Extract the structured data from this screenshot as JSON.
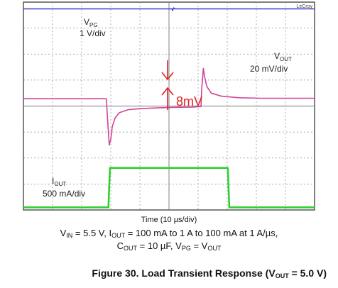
{
  "chart_data": {
    "type": "line",
    "instrument_label": "LeCroy",
    "xlabel": "Time (10 µs/div)",
    "x_divisions": 10,
    "y_divisions": 8,
    "grid": true,
    "series": [
      {
        "name": "VPG",
        "name_main": "V",
        "name_sub": "PG",
        "scale": "1 V/div",
        "color": "#3a3ad0",
        "x_div": [
          0,
          5.1,
          5.12,
          5.16,
          5.2,
          10
        ],
        "y_div": [
          7.74,
          7.74,
          7.68,
          7.78,
          7.74,
          7.74
        ]
      },
      {
        "name": "VOUT",
        "name_main": "V",
        "name_sub": "OUT",
        "scale": "20 mV/div",
        "color": "#d0449a",
        "x_div": [
          0,
          2.85,
          2.9,
          2.95,
          3.0,
          3.05,
          3.15,
          3.3,
          3.6,
          4.0,
          4.6,
          5.2,
          5.8,
          6.1,
          6.12,
          6.18,
          6.22,
          6.3,
          6.45,
          6.8,
          7.4,
          8.2,
          10
        ],
        "y_div": [
          4.28,
          4.28,
          3.3,
          2.5,
          2.72,
          3.2,
          3.55,
          3.75,
          3.86,
          3.9,
          3.93,
          3.95,
          3.96,
          3.98,
          4.6,
          5.45,
          5.15,
          4.75,
          4.5,
          4.38,
          4.32,
          4.3,
          4.3
        ]
      },
      {
        "name": "IOUT",
        "name_main": "I",
        "name_sub": "OUT",
        "scale": "500 mA/div",
        "color": "#30d030",
        "x_div": [
          0,
          2.92,
          2.97,
          7.02,
          7.07,
          10
        ],
        "y_div": [
          0.1,
          0.1,
          1.62,
          1.62,
          0.1,
          0.1
        ]
      }
    ],
    "annotations": [
      {
        "type": "delta-arrows",
        "text": "8mV",
        "color": "#e02020"
      }
    ]
  },
  "caption": {
    "line1": {
      "v": "V",
      "v_sub": "IN",
      "part1": " = 5.5 V, I",
      "i_sub": "OUT",
      "part2": " = 100 mA to 1 A to 100 mA at 1 A/µs,"
    },
    "line2": {
      "c": "C",
      "c_sub": "OUT",
      "part1": " = 10 µF, V",
      "vpg_sub": "PG",
      "part2": " = V",
      "vout_sub": "OUT"
    }
  },
  "figure_title": {
    "prefix": "Figure 30. Load Transient Response (V",
    "sub": "OUT",
    "suffix": " = 5.0 V)"
  }
}
